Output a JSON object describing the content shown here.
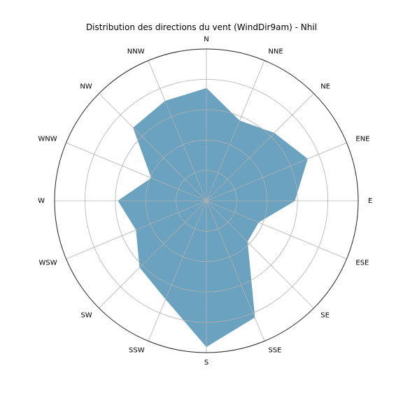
{
  "chart_data": {
    "type": "radar",
    "title": "Distribution des directions du vent (WindDir9am) - Nhil",
    "categories": [
      "N",
      "NNE",
      "NE",
      "ENE",
      "E",
      "ESE",
      "SE",
      "SSE",
      "S",
      "SSW",
      "SW",
      "WSW",
      "W",
      "WNW",
      "NW",
      "NNW"
    ],
    "values": [
      37,
      28.5,
      31.5,
      36,
      29,
      18.5,
      19,
      41.5,
      48,
      35,
      31,
      25,
      29,
      19.5,
      34,
      35.5
    ],
    "rmax": 50,
    "radial_grid": [
      10,
      20,
      30,
      40,
      50
    ],
    "grid": true,
    "fill_color": "#6aa2c0",
    "grid_color": "#b0b0b0",
    "spine_color": "#222222"
  }
}
